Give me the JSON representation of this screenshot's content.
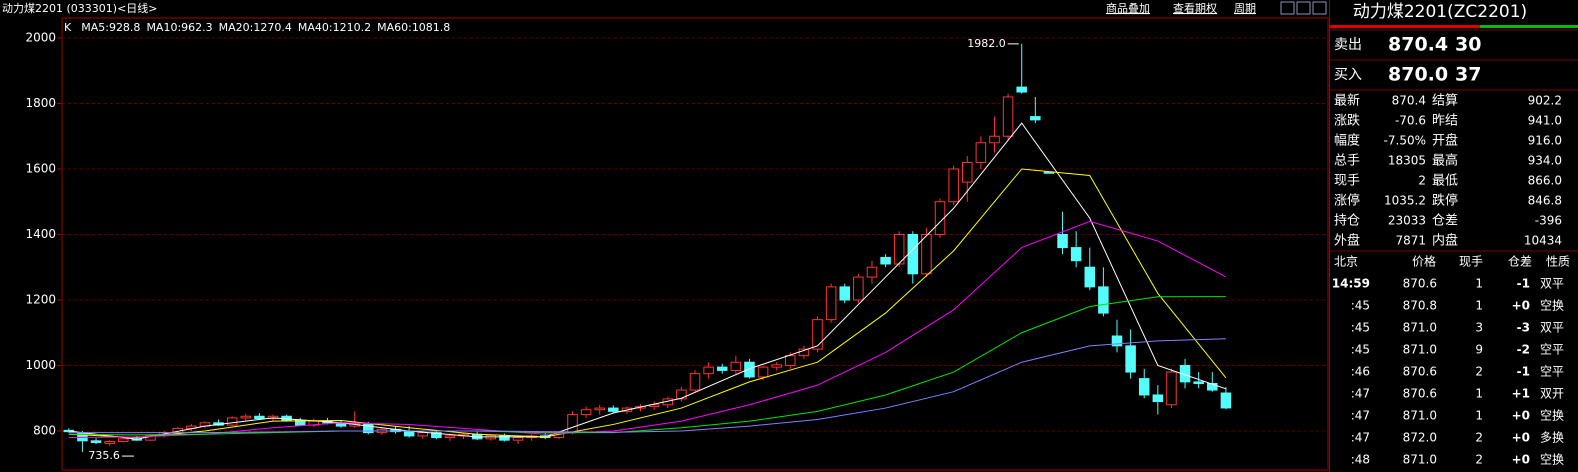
{
  "title": "动力煤2201 (033301)<日线>",
  "toolbar": [
    "商品叠加",
    "查看期权",
    "周期"
  ],
  "chart_data": {
    "type": "candlestick",
    "kline_label": "K",
    "up_color": "#ff3232",
    "down_color": "#54fcfc",
    "ylim": [
      687,
      2061
    ],
    "yticks": [
      800,
      1000,
      1200,
      1400,
      1600,
      1800,
      2000
    ],
    "grid": true,
    "annotations": [
      {
        "value": 1982,
        "label": "1982.0"
      },
      {
        "value": 735.6,
        "label": "735.6"
      }
    ],
    "ohlc": [
      [
        802,
        808,
        795,
        798
      ],
      [
        795,
        800,
        735.6,
        770
      ],
      [
        770,
        778,
        760,
        765
      ],
      [
        762,
        772,
        755,
        768
      ],
      [
        768,
        780,
        765,
        776
      ],
      [
        776,
        785,
        770,
        772
      ],
      [
        772,
        790,
        770,
        786
      ],
      [
        786,
        800,
        780,
        795
      ],
      [
        795,
        812,
        790,
        808
      ],
      [
        808,
        822,
        800,
        815
      ],
      [
        815,
        830,
        808,
        825
      ],
      [
        825,
        835,
        815,
        818
      ],
      [
        818,
        845,
        815,
        840
      ],
      [
        840,
        852,
        832,
        845
      ],
      [
        845,
        855,
        835,
        838
      ],
      [
        838,
        850,
        830,
        845
      ],
      [
        845,
        850,
        828,
        832
      ],
      [
        832,
        840,
        815,
        818
      ],
      [
        818,
        838,
        812,
        830
      ],
      [
        830,
        840,
        820,
        825
      ],
      [
        825,
        832,
        810,
        815
      ],
      [
        815,
        860,
        810,
        822
      ],
      [
        822,
        828,
        790,
        795
      ],
      [
        795,
        810,
        788,
        805
      ],
      [
        805,
        815,
        792,
        798
      ],
      [
        798,
        815,
        780,
        785
      ],
      [
        785,
        800,
        775,
        795
      ],
      [
        795,
        800,
        775,
        780
      ],
      [
        780,
        792,
        770,
        785
      ],
      [
        785,
        795,
        775,
        790
      ],
      [
        790,
        798,
        772,
        776
      ],
      [
        776,
        790,
        770,
        786
      ],
      [
        786,
        792,
        768,
        772
      ],
      [
        772,
        785,
        760,
        780
      ],
      [
        780,
        790,
        770,
        785
      ],
      [
        785,
        795,
        775,
        780
      ],
      [
        780,
        800,
        775,
        795
      ],
      [
        795,
        860,
        790,
        850
      ],
      [
        850,
        875,
        840,
        865
      ],
      [
        865,
        880,
        850,
        870
      ],
      [
        870,
        878,
        855,
        860
      ],
      [
        860,
        875,
        852,
        870
      ],
      [
        870,
        882,
        860,
        875
      ],
      [
        875,
        890,
        865,
        880
      ],
      [
        880,
        905,
        870,
        898
      ],
      [
        898,
        935,
        890,
        925
      ],
      [
        925,
        985,
        918,
        975
      ],
      [
        975,
        1010,
        960,
        995
      ],
      [
        995,
        1005,
        975,
        985
      ],
      [
        985,
        1030,
        975,
        1010
      ],
      [
        1010,
        1020,
        960,
        965
      ],
      [
        965,
        1000,
        955,
        995
      ],
      [
        995,
        1010,
        985,
        1002
      ],
      [
        1000,
        1040,
        990,
        1030
      ],
      [
        1030,
        1060,
        1020,
        1050
      ],
      [
        1050,
        1150,
        1040,
        1140
      ],
      [
        1140,
        1250,
        1130,
        1240
      ],
      [
        1240,
        1250,
        1190,
        1200
      ],
      [
        1200,
        1280,
        1190,
        1270
      ],
      [
        1270,
        1320,
        1250,
        1300
      ],
      [
        1330,
        1340,
        1300,
        1310
      ],
      [
        1310,
        1410,
        1300,
        1400
      ],
      [
        1400,
        1410,
        1250,
        1280
      ],
      [
        1280,
        1420,
        1270,
        1400
      ],
      [
        1400,
        1510,
        1390,
        1500
      ],
      [
        1500,
        1610,
        1490,
        1600
      ],
      [
        1560,
        1640,
        1500,
        1620
      ],
      [
        1620,
        1700,
        1600,
        1680
      ],
      [
        1680,
        1760,
        1650,
        1700
      ],
      [
        1700,
        1830,
        1690,
        1820
      ],
      [
        1850,
        1982,
        1830,
        1835
      ],
      [
        1760,
        1820,
        1740,
        1750
      ],
      [
        1590,
        1592,
        1588,
        1590
      ],
      [
        1400,
        1470,
        1340,
        1360
      ],
      [
        1360,
        1410,
        1300,
        1320
      ],
      [
        1300,
        1360,
        1230,
        1240
      ],
      [
        1240,
        1300,
        1150,
        1160
      ],
      [
        1090,
        1140,
        1040,
        1060
      ],
      [
        1060,
        1110,
        960,
        980
      ],
      [
        960,
        990,
        900,
        910
      ],
      [
        910,
        940,
        850,
        890
      ],
      [
        880,
        990,
        870,
        980
      ],
      [
        1000,
        1020,
        930,
        950
      ],
      [
        950,
        980,
        930,
        945
      ],
      [
        945,
        980,
        920,
        925
      ],
      [
        916,
        934,
        866,
        870.4
      ]
    ],
    "series": [
      {
        "name": "MA5:928.8",
        "color": "#ffffff",
        "x": [
          0,
          5,
          10,
          15,
          20,
          25,
          30,
          35,
          40,
          45,
          50,
          55,
          60,
          65,
          70,
          75,
          80,
          85
        ],
        "values": [
          800,
          775,
          815,
          840,
          825,
          800,
          782,
          782,
          855,
          900,
          990,
          1060,
          1270,
          1480,
          1740,
          1450,
          1000,
          928.8
        ]
      },
      {
        "name": "MA10:962.3",
        "color": "#ffff00",
        "x": [
          0,
          5,
          10,
          15,
          20,
          25,
          30,
          35,
          40,
          45,
          50,
          55,
          60,
          65,
          70,
          75,
          80,
          85
        ],
        "values": [
          790,
          780,
          800,
          830,
          832,
          810,
          790,
          782,
          820,
          870,
          950,
          1010,
          1160,
          1350,
          1600,
          1580,
          1220,
          962.3
        ]
      },
      {
        "name": "MA20:1270.4",
        "color": "#ff00ff",
        "x": [
          0,
          5,
          10,
          15,
          20,
          25,
          30,
          35,
          40,
          45,
          50,
          55,
          60,
          65,
          70,
          75,
          80,
          85
        ],
        "values": [
          780,
          782,
          790,
          810,
          825,
          820,
          805,
          790,
          800,
          830,
          880,
          940,
          1040,
          1170,
          1360,
          1440,
          1380,
          1270.4
        ]
      },
      {
        "name": "MA40:1210.2",
        "color": "#00e600",
        "x": [
          0,
          5,
          10,
          15,
          20,
          25,
          30,
          35,
          40,
          45,
          50,
          55,
          60,
          65,
          70,
          75,
          80,
          85
        ],
        "values": [
          790,
          788,
          790,
          795,
          800,
          800,
          800,
          795,
          795,
          810,
          830,
          860,
          910,
          980,
          1100,
          1180,
          1210,
          1210.2
        ]
      },
      {
        "name": "MA60:1081.8",
        "color": "#8080ff",
        "x": [
          0,
          5,
          10,
          15,
          20,
          25,
          30,
          35,
          40,
          45,
          50,
          55,
          60,
          65,
          70,
          75,
          80,
          85
        ],
        "values": [
          795,
          795,
          795,
          797,
          800,
          800,
          800,
          798,
          796,
          800,
          815,
          835,
          870,
          920,
          1010,
          1060,
          1075,
          1081.8
        ]
      }
    ]
  },
  "quote": {
    "name": "动力煤2201(ZC2201)",
    "book": [
      {
        "label": "卖出",
        "price": "870.4",
        "volume": "30"
      },
      {
        "label": "买入",
        "price": "870.0",
        "volume": "37"
      }
    ],
    "stats": {
      "rows": [
        [
          "最新",
          "870.4",
          "结算",
          "902.2"
        ],
        [
          "涨跌",
          "-70.6",
          "昨结",
          "941.0"
        ],
        [
          "幅度",
          "-7.50%",
          "开盘",
          "916.0"
        ],
        [
          "总手",
          "18305",
          "最高",
          "934.0"
        ],
        [
          "现手",
          "2",
          "最低",
          "866.0"
        ],
        [
          "涨停",
          "1035.2",
          "跌停",
          "846.8"
        ],
        [
          "持仓",
          "23033",
          "仓差",
          "-396"
        ],
        [
          "外盘",
          "7871",
          "内盘",
          "10434"
        ]
      ],
      "colors": [
        [
          "#00e600",
          "#00e600"
        ],
        [
          "#00e600",
          "#ffffff"
        ],
        [
          "#00e600",
          "#00e600"
        ],
        [
          "#ffff00",
          "#00e600"
        ],
        [
          "#ffff00",
          "#00e600"
        ],
        [
          "#ff3232",
          "#00e600"
        ],
        [
          "#ffff00",
          "#00e600"
        ],
        [
          "#ff3232",
          "#00e600"
        ]
      ]
    },
    "ticks": {
      "header": [
        "北京",
        "价格",
        "现手",
        "仓差",
        "性质"
      ],
      "rows": [
        [
          "14:59",
          "870.6",
          "1",
          "-1",
          "双平"
        ],
        [
          ":45",
          "870.8",
          "1",
          "+0",
          "空换"
        ],
        [
          ":45",
          "871.0",
          "3",
          "-3",
          "双平"
        ],
        [
          ":45",
          "871.0",
          "9",
          "-2",
          "空平"
        ],
        [
          ":46",
          "870.6",
          "2",
          "-1",
          "空平"
        ],
        [
          ":47",
          "870.6",
          "1",
          "+1",
          "双开"
        ],
        [
          ":47",
          "871.0",
          "1",
          "+0",
          "空换"
        ],
        [
          ":47",
          "872.0",
          "2",
          "+0",
          "多换"
        ],
        [
          ":48",
          "871.0",
          "2",
          "+0",
          "空换"
        ]
      ],
      "colors": [
        [
          "#ffffff",
          "#00e600",
          "#00e600",
          "#ffffff",
          "#ff3232"
        ],
        [
          "#c0c0c0",
          "#00e600",
          "#00e600",
          "#ffffff",
          "#00e600"
        ],
        [
          "#c0c0c0",
          "#00e600",
          "#ff3232",
          "#ffffff",
          "#ff3232"
        ],
        [
          "#c0c0c0",
          "#00e600",
          "#ff3232",
          "#ffffff",
          "#ff3232"
        ],
        [
          "#c0c0c0",
          "#00e600",
          "#ff3232",
          "#ffffff",
          "#ff3232"
        ],
        [
          "#c0c0c0",
          "#00e600",
          "#00e600",
          "#ffffff",
          "#00e600"
        ],
        [
          "#c0c0c0",
          "#00e600",
          "#00e600",
          "#ffffff",
          "#00e600"
        ],
        [
          "#c0c0c0",
          "#00e600",
          "#ff3232",
          "#ffffff",
          "#ff3232"
        ],
        [
          "#c0c0c0",
          "#00e600",
          "#ff3232",
          "#ffffff",
          "#00e600"
        ]
      ]
    }
  }
}
